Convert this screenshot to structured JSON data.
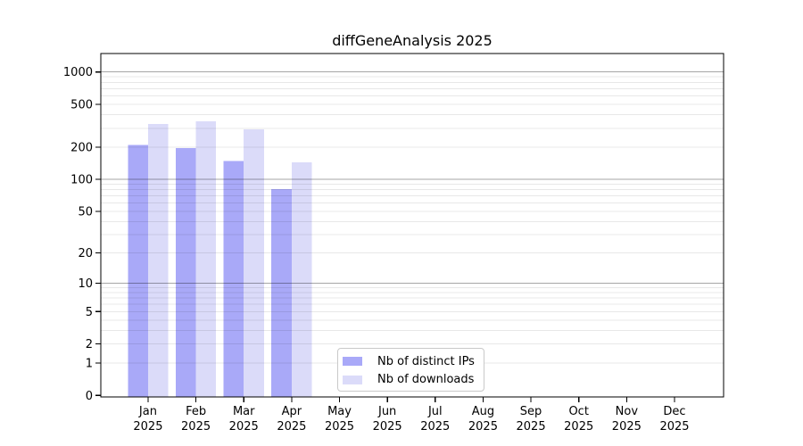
{
  "chart_data": {
    "type": "bar",
    "title": "diffGeneAnalysis 2025",
    "categories": [
      "Jan",
      "Feb",
      "Mar",
      "Apr",
      "May",
      "Jun",
      "Jul",
      "Aug",
      "Sep",
      "Oct",
      "Nov",
      "Dec"
    ],
    "xtick_year": "2025",
    "series": [
      {
        "name": "Nb of distinct IPs",
        "color": "#a9a9f8",
        "values": [
          210,
          197,
          148,
          81,
          null,
          null,
          null,
          null,
          null,
          null,
          null,
          null
        ]
      },
      {
        "name": "Nb of downloads",
        "color": "#dbdbf9",
        "values": [
          328,
          348,
          292,
          144,
          null,
          null,
          null,
          null,
          null,
          null,
          null,
          null
        ]
      }
    ],
    "yticks": [
      0,
      1,
      2,
      5,
      10,
      20,
      50,
      100,
      200,
      500,
      1000
    ],
    "scale": "log10(value+1)",
    "ylim": [
      0,
      1480
    ],
    "grid": {
      "major_lines": [
        10,
        100,
        1000
      ],
      "minor_lines": [
        1,
        2,
        3,
        4,
        5,
        6,
        7,
        8,
        9,
        20,
        30,
        40,
        50,
        60,
        70,
        80,
        90,
        200,
        300,
        400,
        500,
        600,
        700,
        800,
        900
      ],
      "major_color": "rgba(0,0,0,0.35)",
      "minor_color": "rgba(0,0,0,0.09)"
    },
    "axis_color": "#000000",
    "text_color": "#000000",
    "legend_position": "bottom-center"
  }
}
